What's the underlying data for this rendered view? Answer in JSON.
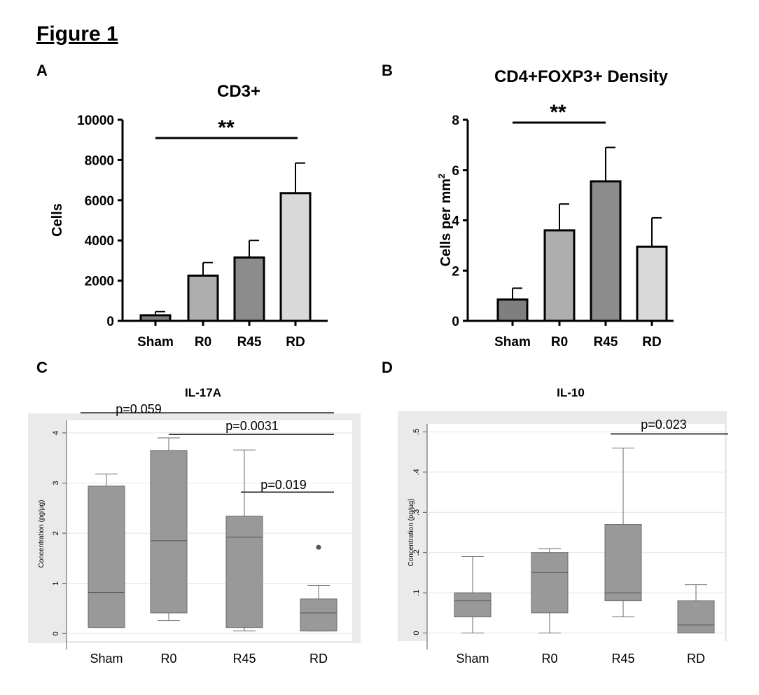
{
  "figure_title": "Figure 1",
  "panels": {
    "a": {
      "letter": "A"
    },
    "b": {
      "letter": "B"
    },
    "c": {
      "letter": "C"
    },
    "d": {
      "letter": "D"
    }
  },
  "colors": {
    "bar_dark": "#7f7f7f",
    "bar_mid": "#9a9a9a",
    "bar_light": "#d9d9d9",
    "bar_lighter": "#aeaeae",
    "box_fill": "#999999",
    "box_stroke": "#6a6a6a",
    "stata_bg": "#eaeaea"
  },
  "chart_data": [
    {
      "id": "A",
      "type": "bar",
      "title": "CD3+",
      "ylabel": "Cells",
      "xlabel": "",
      "categories": [
        "Sham",
        "R0",
        "R45",
        "RD"
      ],
      "values": [
        280,
        2250,
        3150,
        6350
      ],
      "errors": [
        180,
        650,
        850,
        1500
      ],
      "bar_colors": [
        "#7f7f7f",
        "#aeaeae",
        "#8c8c8c",
        "#d9d9d9"
      ],
      "ylim": [
        0,
        10000
      ],
      "yticks": [
        "0",
        "2000",
        "4000",
        "6000",
        "8000",
        "10000"
      ],
      "annotations": [
        {
          "text": "**",
          "from": "Sham",
          "to": "RD"
        }
      ]
    },
    {
      "id": "B",
      "type": "bar",
      "title": "CD4+FOXP3+ Density",
      "ylabel": "Cells per mm",
      "ylabel_sup": "2",
      "xlabel": "",
      "categories": [
        "Sham",
        "R0",
        "R45",
        "RD"
      ],
      "values": [
        0.85,
        3.6,
        5.55,
        2.95
      ],
      "errors": [
        0.45,
        1.05,
        1.35,
        1.15
      ],
      "bar_colors": [
        "#7f7f7f",
        "#aeaeae",
        "#8c8c8c",
        "#d9d9d9"
      ],
      "ylim": [
        0,
        8
      ],
      "yticks": [
        "0",
        "2",
        "4",
        "6",
        "8"
      ],
      "annotations": [
        {
          "text": "**",
          "from": "Sham",
          "to": "R45"
        }
      ]
    },
    {
      "id": "C",
      "type": "box",
      "title": "IL-17A",
      "ylabel": "Concentration (pg/µg)",
      "xlabel": "",
      "categories": [
        "Sham",
        "R0",
        "R45",
        "RD"
      ],
      "boxes": [
        {
          "min": 0.12,
          "q1": 0.12,
          "median": 0.82,
          "q3": 2.94,
          "max": 3.18
        },
        {
          "min": 0.26,
          "q1": 0.41,
          "median": 1.85,
          "q3": 3.65,
          "max": 3.9
        },
        {
          "min": 0.05,
          "q1": 0.12,
          "median": 1.92,
          "q3": 2.34,
          "max": 3.66
        },
        {
          "min": 0.05,
          "q1": 0.05,
          "median": 0.41,
          "q3": 0.69,
          "max": 0.96,
          "outliers": [
            1.72
          ]
        }
      ],
      "ylim": [
        -0.15,
        4.25
      ],
      "yticks": [
        "0",
        "1",
        "2",
        "3",
        "4"
      ],
      "annotations": [
        {
          "text": "p=0.059",
          "from": "Sham",
          "to": "RD",
          "y": 4.4
        },
        {
          "text": "p=0.0031",
          "from": "R0",
          "to": "RD",
          "y": 3.97
        },
        {
          "text": "p=0.019",
          "from": "R45",
          "to": "RD",
          "y": 2.82
        }
      ]
    },
    {
      "id": "D",
      "type": "box",
      "title": "IL-10",
      "ylabel": "Concentration (pg/µg)",
      "xlabel": "",
      "categories": [
        "Sham",
        "R0",
        "R45",
        "RD"
      ],
      "boxes": [
        {
          "min": 0.0,
          "q1": 0.04,
          "median": 0.08,
          "q3": 0.1,
          "max": 0.19
        },
        {
          "min": 0.0,
          "q1": 0.05,
          "median": 0.15,
          "q3": 0.2,
          "max": 0.21
        },
        {
          "min": 0.04,
          "q1": 0.08,
          "median": 0.1,
          "q3": 0.27,
          "max": 0.46
        },
        {
          "min": 0.0,
          "q1": 0.0,
          "median": 0.02,
          "q3": 0.08,
          "max": 0.12
        }
      ],
      "ylim": [
        -0.02,
        0.52
      ],
      "yticks": [
        "0",
        ".1",
        ".2",
        ".3",
        ".4",
        ".5"
      ],
      "annotations": [
        {
          "text": "p=0.023",
          "from": "R45",
          "to": "RD",
          "y": 0.495
        }
      ]
    }
  ]
}
